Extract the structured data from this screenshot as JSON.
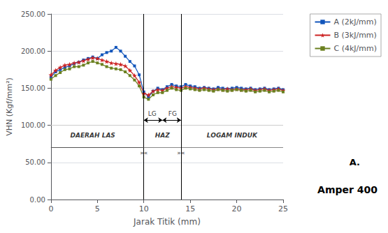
{
  "chart_data": {
    "type": "line",
    "xlabel": "Jarak Titik (mm)",
    "ylabel": "VHN (Kgf/mm²)",
    "xlim": [
      0,
      25
    ],
    "ylim": [
      0,
      250
    ],
    "xticks": [
      0,
      5,
      10,
      15,
      20,
      25
    ],
    "yticks": [
      {
        "value": 0,
        "label": "0.00"
      },
      {
        "value": 50,
        "label": "50.00"
      },
      {
        "value": 100,
        "label": "100.00"
      },
      {
        "value": 150,
        "label": "150.00"
      },
      {
        "value": 200,
        "label": "200.00"
      },
      {
        "value": 250,
        "label": "250.00"
      }
    ],
    "grid": "y",
    "legend": "right",
    "x": [
      0,
      0.5,
      1,
      1.5,
      2,
      2.5,
      3,
      3.5,
      4,
      4.5,
      5,
      5.5,
      6,
      6.5,
      7,
      7.5,
      8,
      8.5,
      9,
      9.5,
      10,
      10.5,
      11,
      11.5,
      12,
      12.5,
      13,
      13.5,
      14,
      14.5,
      15,
      15.5,
      16,
      16.5,
      17,
      17.5,
      18,
      18.5,
      19,
      19.5,
      20,
      20.5,
      21,
      21.5,
      22,
      22.5,
      23,
      23.5,
      24,
      24.5,
      25
    ],
    "series": [
      {
        "name": "A (2kJ/mm)",
        "color": "#1155bb",
        "marker": "square",
        "values": [
          165,
          172,
          175,
          178,
          180,
          183,
          185,
          188,
          190,
          192,
          190,
          195,
          198,
          200,
          205,
          200,
          193,
          186,
          180,
          168,
          145,
          138,
          146,
          150,
          148,
          152,
          155,
          153,
          152,
          155,
          153,
          152,
          150,
          151,
          150,
          149,
          151,
          150,
          149,
          150,
          151,
          150,
          149,
          150,
          148,
          149,
          150,
          148,
          149,
          150,
          148
        ]
      },
      {
        "name": "B (3kJ/mm)",
        "color": "#cc2222",
        "marker": "star",
        "values": [
          168,
          174,
          178,
          181,
          182,
          184,
          185,
          187,
          189,
          191,
          190,
          188,
          186,
          184,
          183,
          182,
          180,
          174,
          167,
          158,
          143,
          141,
          146,
          148,
          147,
          150,
          152,
          151,
          150,
          152,
          151,
          150,
          149,
          150,
          149,
          148,
          149,
          148,
          149,
          148,
          149,
          148,
          148,
          149,
          147,
          148,
          149,
          147,
          148,
          149,
          147
        ]
      },
      {
        "name": "C (4kJ/mm)",
        "color": "#6b8020",
        "marker": "square",
        "values": [
          162,
          167,
          171,
          175,
          176,
          179,
          179,
          181,
          184,
          186,
          184,
          182,
          179,
          177,
          176,
          175,
          172,
          167,
          161,
          153,
          138,
          135,
          141,
          144,
          144,
          147,
          150,
          148,
          147,
          150,
          149,
          148,
          147,
          148,
          147,
          146,
          148,
          147,
          146,
          147,
          148,
          147,
          146,
          147,
          145,
          146,
          147,
          145,
          146,
          147,
          145
        ]
      }
    ],
    "vlines": [
      10,
      14
    ],
    "hlines": [
      70,
      100
    ],
    "segments": [
      {
        "x": [
          0,
          10
        ],
        "y": [
          70,
          70
        ]
      },
      {
        "x": [
          10,
          10
        ],
        "y": [
          107,
          145
        ]
      },
      {
        "x": [
          14,
          14
        ],
        "y": [
          107,
          145
        ]
      }
    ],
    "arrows": [
      {
        "x": [
          10,
          12
        ],
        "y": 107
      },
      {
        "x": [
          12,
          14
        ],
        "y": 107
      }
    ],
    "zone_labels": [
      {
        "text": "DAERAH LAS",
        "x": 4.5,
        "y": 82
      },
      {
        "text": "HAZ",
        "x": 12,
        "y": 82
      },
      {
        "text": "LOGAM INDUK",
        "x": 19.5,
        "y": 82
      }
    ],
    "annotations": [
      {
        "text": "»«",
        "x": 10,
        "y": 63
      },
      {
        "text": "»«",
        "x": 14,
        "y": 63
      },
      {
        "text": "LG",
        "x": 10.9,
        "y": 111
      },
      {
        "text": "FG",
        "x": 13.1,
        "y": 111
      }
    ],
    "figure_texts": [
      "A.",
      "Amper 400"
    ]
  }
}
